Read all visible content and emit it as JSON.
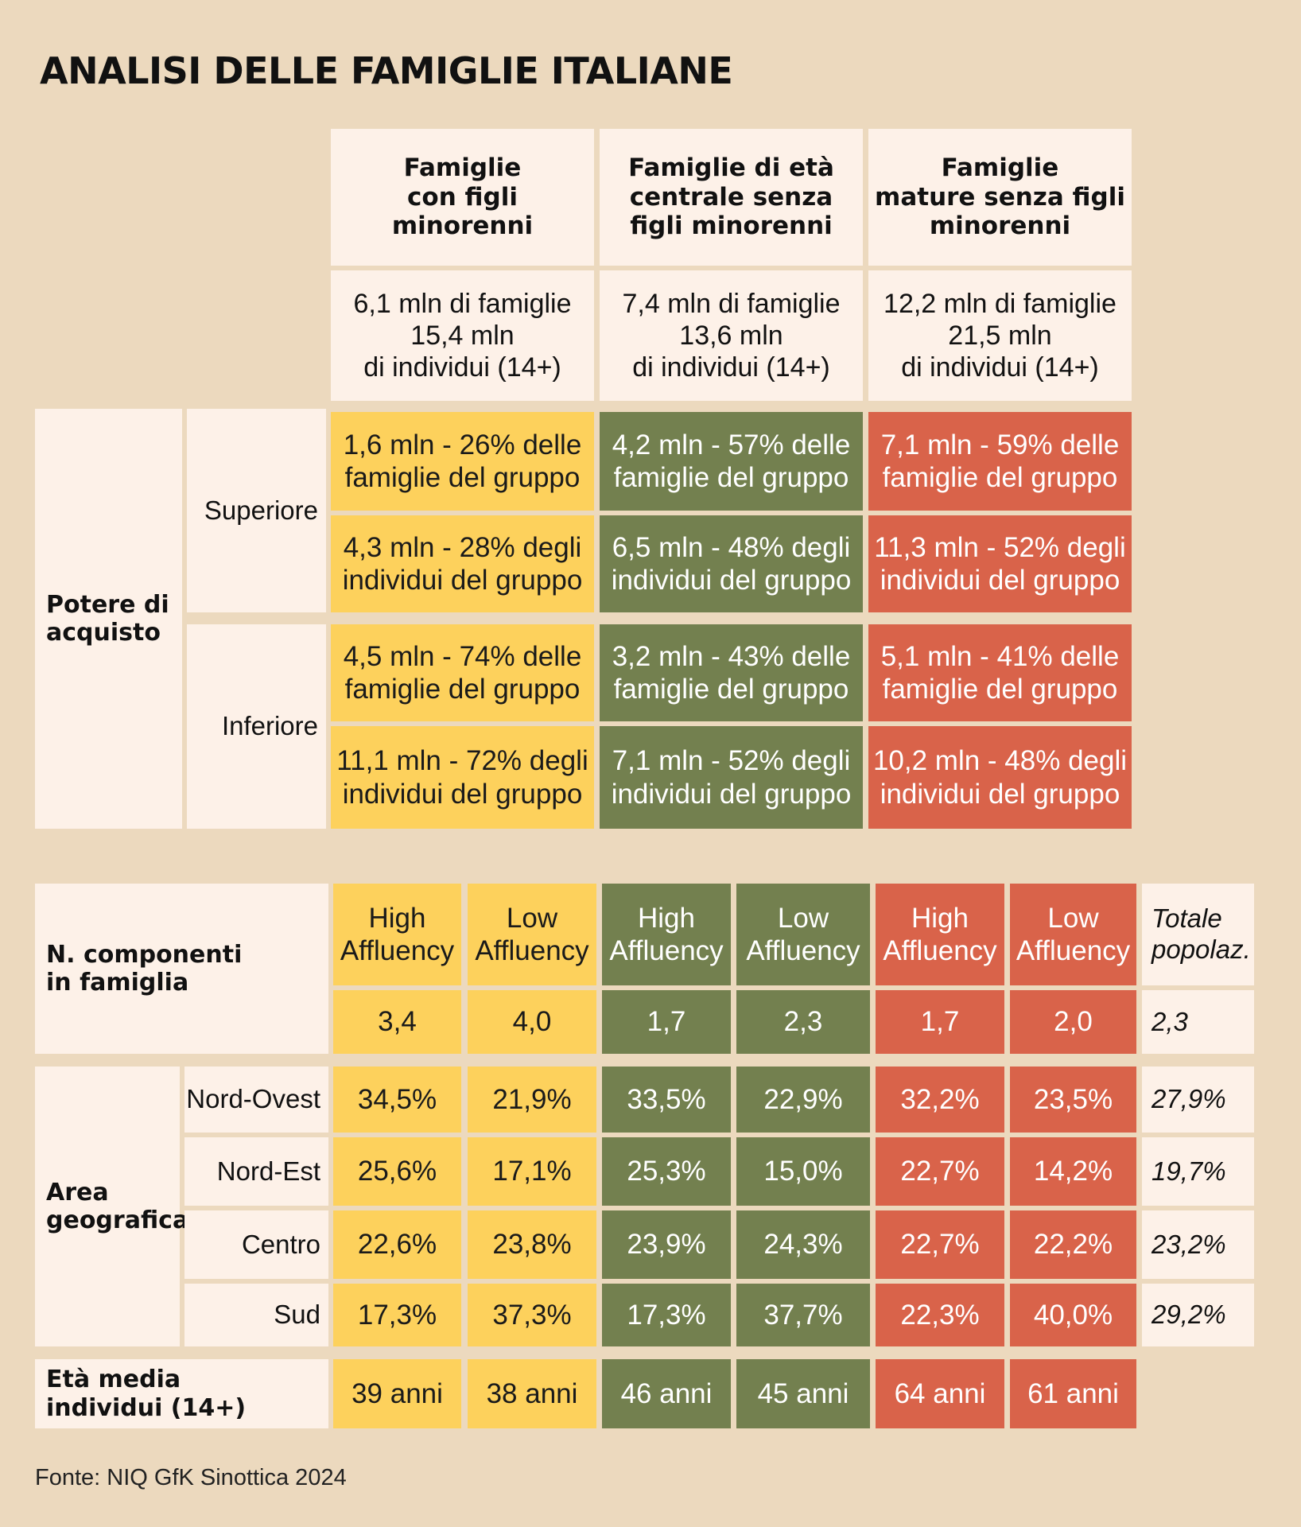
{
  "title": "ANALISI DELLE FAMIGLIE ITALIANE",
  "groups": [
    {
      "header": [
        "Famiglie",
        "con figli",
        "minorenni"
      ],
      "info": [
        "6,1 mln di famiglie",
        "15,4 mln",
        "di individui (14+)"
      ],
      "sup_fam": [
        "1,6 mln - 26% delle",
        "famiglie del gruppo"
      ],
      "sup_ind": [
        "4,3 mln - 28% degli",
        "individui del gruppo"
      ],
      "inf_fam": [
        "4,5 mln - 74% delle",
        "famiglie del gruppo"
      ],
      "inf_ind": [
        "11,1 mln - 72% degli",
        "individui del gruppo"
      ]
    },
    {
      "header": [
        "Famiglie di età",
        "centrale senza",
        "figli minorenni"
      ],
      "info": [
        "7,4 mln di famiglie",
        "13,6 mln",
        "di individui (14+)"
      ],
      "sup_fam": [
        "4,2 mln - 57% delle",
        "famiglie del gruppo"
      ],
      "sup_ind": [
        "6,5 mln - 48% degli",
        "individui del gruppo"
      ],
      "inf_fam": [
        "3,2 mln - 43% delle",
        "famiglie del gruppo"
      ],
      "inf_ind": [
        "7,1 mln - 52% degli",
        "individui del gruppo"
      ]
    },
    {
      "header": [
        "Famiglie",
        "mature senza figli",
        "minorenni"
      ],
      "info": [
        "12,2 mln di famiglie",
        "21,5 mln",
        "di individui (14+)"
      ],
      "sup_fam": [
        "7,1 mln - 59% delle",
        "famiglie del gruppo"
      ],
      "sup_ind": [
        "11,3 mln - 52% degli",
        "individui del gruppo"
      ],
      "inf_fam": [
        "5,1 mln - 41% delle",
        "famiglie del gruppo"
      ],
      "inf_ind": [
        "10,2 mln - 48%  degli",
        "individui del gruppo"
      ]
    }
  ],
  "labels": {
    "potere": [
      "Potere di",
      "acquisto"
    ],
    "superiore": "Superiore",
    "inferiore": "Inferiore",
    "componenti": [
      "N. componenti",
      "in famiglia"
    ],
    "area": [
      "Area",
      "geografica"
    ],
    "eta": [
      "Età media",
      "individui (14+)"
    ],
    "regions": [
      "Nord-Ovest",
      "Nord-Est",
      "Centro",
      "Sud"
    ]
  },
  "bottom_headers": [
    [
      "High",
      "Affluency"
    ],
    [
      "Low",
      "Affluency"
    ],
    [
      "High",
      "Affluency"
    ],
    [
      "Low",
      "Affluency"
    ],
    [
      "High",
      "Affluency"
    ],
    [
      "Low",
      "Affluency"
    ]
  ],
  "total_header": [
    "Totale",
    "popolaz."
  ],
  "componenti": [
    "3,4",
    "4,0",
    "1,7",
    "2,3",
    "1,7",
    "2,0",
    "2,3"
  ],
  "regions_values": [
    [
      "34,5%",
      "21,9%",
      "33,5%",
      "22,9%",
      "32,2%",
      "23,5%",
      "27,9%"
    ],
    [
      "25,6%",
      "17,1%",
      "25,3%",
      "15,0%",
      "22,7%",
      "14,2%",
      "19,7%"
    ],
    [
      "22,6%",
      "23,8%",
      "23,9%",
      "24,3%",
      "22,7%",
      "22,2%",
      "23,2%"
    ],
    [
      "17,3%",
      "37,3%",
      "17,3%",
      "37,7%",
      "22,3%",
      "40,0%",
      "29,2%"
    ]
  ],
  "eta_values": [
    "39 anni",
    "38 anni",
    "46 anni",
    "45 anni",
    "64 anni",
    "61 anni"
  ],
  "source": "Fonte: NIQ GfK Sinottica 2024",
  "colors": {
    "background": "#ecd9be",
    "light": "#fdf1e8",
    "yellow": "#fdd15c",
    "green": "#73804f",
    "red": "#d9634a"
  }
}
